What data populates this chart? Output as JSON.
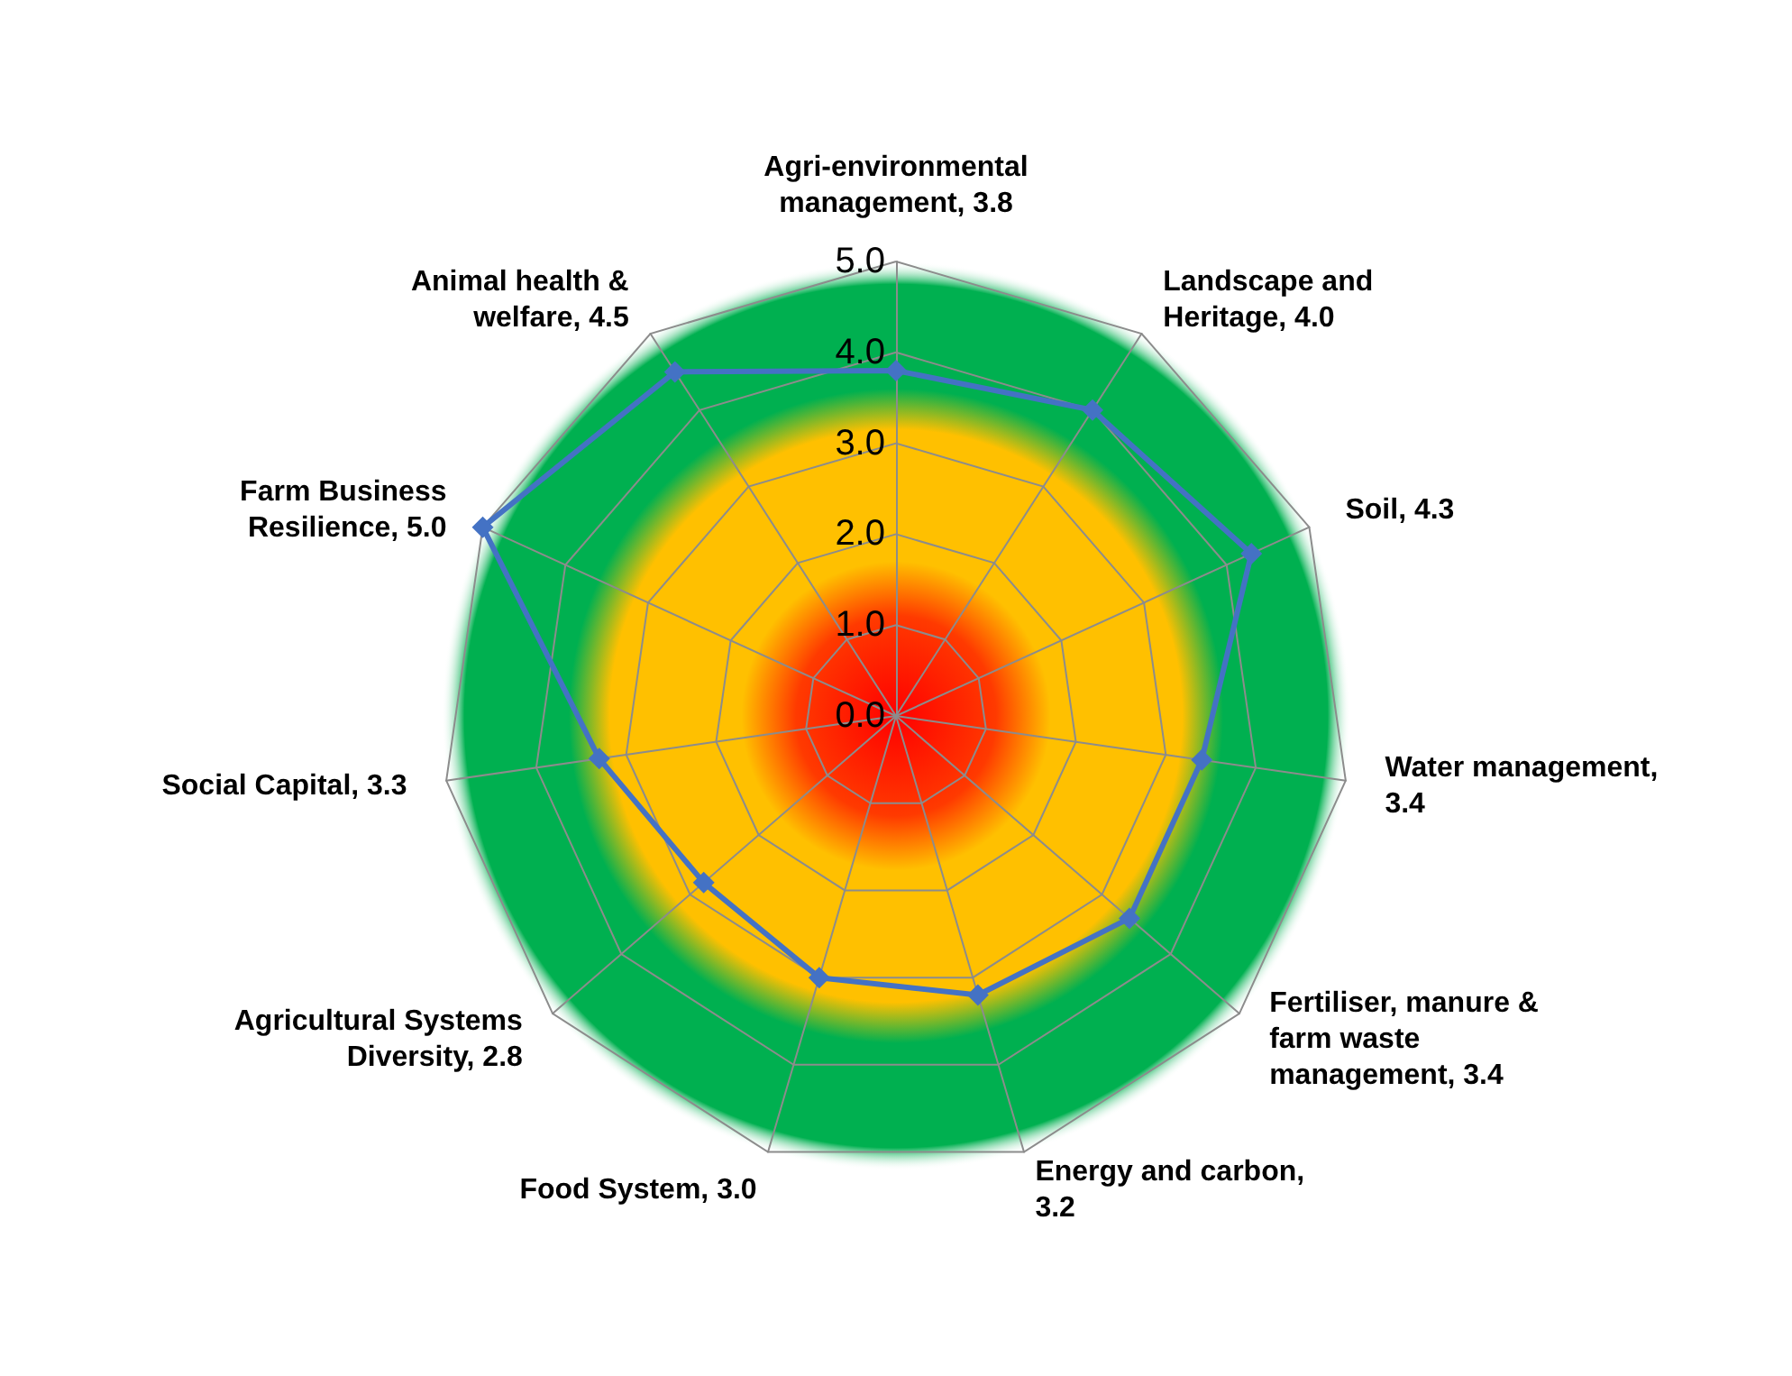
{
  "chart_data": {
    "type": "radar",
    "categories": [
      "Agri-environmental management, 3.8",
      "Landscape and Heritage, 4.0",
      "Soil, 4.3",
      "Water management, 3.4",
      "Fertiliser, manure & farm waste management, 3.4",
      "Energy and carbon, 3.2",
      "Food System, 3.0",
      "Agricultural Systems Diversity, 2.8",
      "Social Capital, 3.3",
      "Farm Business Resilience, 5.0",
      "Animal health & welfare, 4.5"
    ],
    "series": [
      {
        "color": "#4472c4",
        "values": [
          3.8,
          4.0,
          4.3,
          3.4,
          3.4,
          3.2,
          3.0,
          2.8,
          3.3,
          5.0,
          4.5
        ]
      }
    ],
    "ylim": [
      0,
      5
    ],
    "yticks": [
      {
        "value": 0,
        "label": "0.0"
      },
      {
        "value": 1,
        "label": "1.0"
      },
      {
        "value": 2,
        "label": "2.0"
      },
      {
        "value": 3,
        "label": "3.0"
      },
      {
        "value": 4,
        "label": "4.0"
      },
      {
        "value": 5,
        "label": "5.0"
      }
    ],
    "grid": true,
    "marker": "diamond",
    "line_style": "solid"
  }
}
